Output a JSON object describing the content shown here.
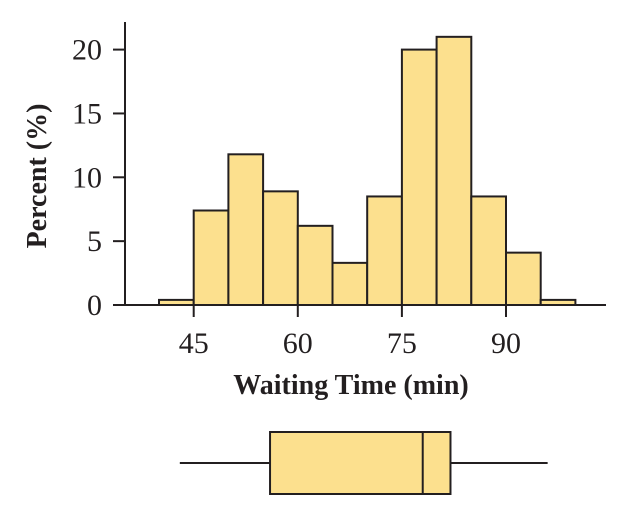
{
  "chart_data": [
    {
      "type": "histogram",
      "xlabel": "Waiting Time (min)",
      "ylabel": "Percent (%)",
      "bin_width": 5,
      "bin_edges": [
        40,
        45,
        50,
        55,
        60,
        65,
        70,
        75,
        80,
        85,
        90,
        95,
        100
      ],
      "values": [
        0.4,
        7.4,
        11.8,
        8.9,
        6.2,
        3.3,
        8.5,
        20.0,
        21.0,
        8.5,
        4.1,
        0.4
      ],
      "xticks": [
        45,
        60,
        75,
        90
      ],
      "yticks": [
        0,
        5,
        10,
        15,
        20
      ],
      "ylim": [
        0,
        22.2
      ],
      "xlim": [
        35,
        108
      ],
      "grid": false,
      "bar_color": "#fce08e",
      "edge_color": "#231f20"
    },
    {
      "type": "boxplot",
      "min": 43,
      "q1": 56,
      "median": 78,
      "q3": 82,
      "max": 96,
      "fill_color": "#fce08e"
    }
  ]
}
